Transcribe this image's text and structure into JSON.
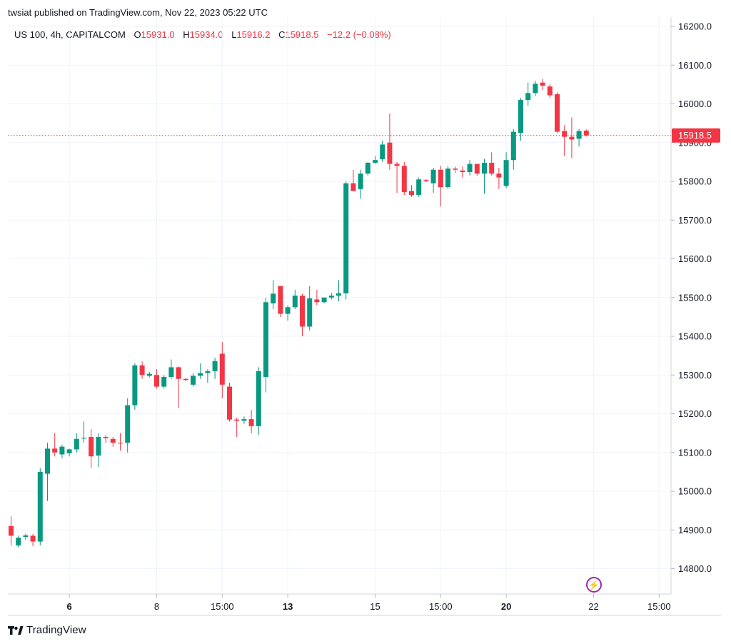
{
  "header": {
    "attribution": "twsiat published on TradingView.com, Nov 22, 2023 05:22 UTC"
  },
  "legend": {
    "symbol": "US 100, 4h, CAPITALCOM",
    "open_label": "O",
    "open": "15931.0",
    "high_label": "H",
    "high": "15934.0",
    "low_label": "L",
    "low": "15916.2",
    "close_label": "C",
    "close": "15918.5",
    "change": "−12.2 (−0.08%)"
  },
  "footer": {
    "brand": "TradingView"
  },
  "colors": {
    "up": "#089981",
    "down": "#f23645",
    "grid": "#f0f3fa",
    "text": "#131722",
    "accent": "#9c27b0"
  },
  "icons": {
    "brand": "tradingview-logo-icon",
    "lightning": "lightning-icon"
  },
  "chart_data": {
    "type": "candlestick",
    "timeframe": "4h",
    "ylim": [
      14730,
      16220
    ],
    "y_ticks": [
      "16200.0",
      "16100.0",
      "16000.0",
      "15900.0",
      "15800.0",
      "15700.0",
      "15600.0",
      "15500.0",
      "15400.0",
      "15300.0",
      "15200.0",
      "15100.0",
      "15000.0",
      "14900.0",
      "14800.0"
    ],
    "x_ticks": [
      {
        "label": "6",
        "index": 8,
        "bold": true
      },
      {
        "label": "8",
        "index": 20,
        "bold": false
      },
      {
        "label": "15:00",
        "index": 29,
        "bold": false
      },
      {
        "label": "13",
        "index": 38,
        "bold": true
      },
      {
        "label": "15",
        "index": 50,
        "bold": false
      },
      {
        "label": "15:00",
        "index": 59,
        "bold": false
      },
      {
        "label": "20",
        "index": 68,
        "bold": true
      },
      {
        "label": "22",
        "index": 80,
        "bold": false
      },
      {
        "label": "15:00",
        "index": 89,
        "bold": false
      }
    ],
    "last_price": "15918.5",
    "last_price_value": 15918.5,
    "candles": [
      {
        "o": 14910,
        "h": 14935,
        "l": 14860,
        "c": 14885
      },
      {
        "o": 14860,
        "h": 14885,
        "l": 14855,
        "c": 14880
      },
      {
        "o": 14882,
        "h": 14890,
        "l": 14875,
        "c": 14886
      },
      {
        "o": 14885,
        "h": 14890,
        "l": 14858,
        "c": 14870
      },
      {
        "o": 14870,
        "h": 15060,
        "l": 14860,
        "c": 15050
      },
      {
        "o": 15045,
        "h": 15125,
        "l": 14975,
        "c": 15110
      },
      {
        "o": 15110,
        "h": 15150,
        "l": 15090,
        "c": 15100
      },
      {
        "o": 15095,
        "h": 15120,
        "l": 15085,
        "c": 15115
      },
      {
        "o": 15098,
        "h": 15110,
        "l": 15090,
        "c": 15108
      },
      {
        "o": 15108,
        "h": 15150,
        "l": 15100,
        "c": 15135
      },
      {
        "o": 15136,
        "h": 15180,
        "l": 15125,
        "c": 15138
      },
      {
        "o": 15140,
        "h": 15160,
        "l": 15060,
        "c": 15090
      },
      {
        "o": 15092,
        "h": 15150,
        "l": 15062,
        "c": 15140
      },
      {
        "o": 15140,
        "h": 15145,
        "l": 15125,
        "c": 15137
      },
      {
        "o": 15135,
        "h": 15140,
        "l": 15115,
        "c": 15125
      },
      {
        "o": 15125,
        "h": 15150,
        "l": 15105,
        "c": 15124
      },
      {
        "o": 15125,
        "h": 15240,
        "l": 15100,
        "c": 15222
      },
      {
        "o": 15222,
        "h": 15330,
        "l": 15210,
        "c": 15325
      },
      {
        "o": 15325,
        "h": 15335,
        "l": 15290,
        "c": 15300
      },
      {
        "o": 15298,
        "h": 15308,
        "l": 15294,
        "c": 15303
      },
      {
        "o": 15300,
        "h": 15315,
        "l": 15265,
        "c": 15270
      },
      {
        "o": 15270,
        "h": 15300,
        "l": 15265,
        "c": 15295
      },
      {
        "o": 15295,
        "h": 15340,
        "l": 15290,
        "c": 15320
      },
      {
        "o": 15320,
        "h": 15322,
        "l": 15215,
        "c": 15290
      },
      {
        "o": 15290,
        "h": 15292,
        "l": 15283,
        "c": 15287
      },
      {
        "o": 15275,
        "h": 15305,
        "l": 15270,
        "c": 15298
      },
      {
        "o": 15298,
        "h": 15330,
        "l": 15290,
        "c": 15305
      },
      {
        "o": 15305,
        "h": 15315,
        "l": 15280,
        "c": 15310
      },
      {
        "o": 15310,
        "h": 15345,
        "l": 15290,
        "c": 15336
      },
      {
        "o": 15355,
        "h": 15385,
        "l": 15240,
        "c": 15275
      },
      {
        "o": 15270,
        "h": 15280,
        "l": 15180,
        "c": 15185
      },
      {
        "o": 15185,
        "h": 15190,
        "l": 15140,
        "c": 15182
      },
      {
        "o": 15182,
        "h": 15193,
        "l": 15174,
        "c": 15186
      },
      {
        "o": 15186,
        "h": 15210,
        "l": 15150,
        "c": 15168
      },
      {
        "o": 15168,
        "h": 15320,
        "l": 15145,
        "c": 15310
      },
      {
        "o": 15295,
        "h": 15500,
        "l": 15255,
        "c": 15488
      },
      {
        "o": 15485,
        "h": 15545,
        "l": 15470,
        "c": 15510
      },
      {
        "o": 15530,
        "h": 15530,
        "l": 15450,
        "c": 15458
      },
      {
        "o": 15458,
        "h": 15480,
        "l": 15440,
        "c": 15475
      },
      {
        "o": 15475,
        "h": 15520,
        "l": 15470,
        "c": 15505
      },
      {
        "o": 15505,
        "h": 15510,
        "l": 15400,
        "c": 15425
      },
      {
        "o": 15425,
        "h": 15530,
        "l": 15415,
        "c": 15498
      },
      {
        "o": 15495,
        "h": 15520,
        "l": 15480,
        "c": 15488
      },
      {
        "o": 15488,
        "h": 15500,
        "l": 15485,
        "c": 15500
      },
      {
        "o": 15500,
        "h": 15512,
        "l": 15495,
        "c": 15505
      },
      {
        "o": 15505,
        "h": 15545,
        "l": 15490,
        "c": 15511
      },
      {
        "o": 15511,
        "h": 15800,
        "l": 15495,
        "c": 15795
      },
      {
        "o": 15795,
        "h": 15830,
        "l": 15780,
        "c": 15775
      },
      {
        "o": 15780,
        "h": 15830,
        "l": 15755,
        "c": 15820
      },
      {
        "o": 15820,
        "h": 15850,
        "l": 15815,
        "c": 15848
      },
      {
        "o": 15848,
        "h": 15865,
        "l": 15845,
        "c": 15855
      },
      {
        "o": 15857,
        "h": 15905,
        "l": 15850,
        "c": 15895
      },
      {
        "o": 15900,
        "h": 15975,
        "l": 15830,
        "c": 15845
      },
      {
        "o": 15845,
        "h": 15850,
        "l": 15770,
        "c": 15840
      },
      {
        "o": 15840,
        "h": 15850,
        "l": 15765,
        "c": 15772
      },
      {
        "o": 15775,
        "h": 15790,
        "l": 15760,
        "c": 15765
      },
      {
        "o": 15765,
        "h": 15810,
        "l": 15760,
        "c": 15805
      },
      {
        "o": 15803,
        "h": 15806,
        "l": 15798,
        "c": 15800
      },
      {
        "o": 15795,
        "h": 15835,
        "l": 15770,
        "c": 15830
      },
      {
        "o": 15830,
        "h": 15840,
        "l": 15735,
        "c": 15785
      },
      {
        "o": 15785,
        "h": 15840,
        "l": 15780,
        "c": 15833
      },
      {
        "o": 15833,
        "h": 15838,
        "l": 15822,
        "c": 15830
      },
      {
        "o": 15828,
        "h": 15838,
        "l": 15810,
        "c": 15824
      },
      {
        "o": 15824,
        "h": 15855,
        "l": 15815,
        "c": 15845
      },
      {
        "o": 15845,
        "h": 15845,
        "l": 15815,
        "c": 15820
      },
      {
        "o": 15820,
        "h": 15858,
        "l": 15768,
        "c": 15848
      },
      {
        "o": 15848,
        "h": 15875,
        "l": 15815,
        "c": 15820
      },
      {
        "o": 15820,
        "h": 15835,
        "l": 15780,
        "c": 15810
      },
      {
        "o": 15788,
        "h": 15875,
        "l": 15782,
        "c": 15855
      },
      {
        "o": 15855,
        "h": 15935,
        "l": 15830,
        "c": 15928
      },
      {
        "o": 15925,
        "h": 16015,
        "l": 15905,
        "c": 16010
      },
      {
        "o": 16010,
        "h": 16055,
        "l": 15995,
        "c": 16028
      },
      {
        "o": 16028,
        "h": 16060,
        "l": 16020,
        "c": 16052
      },
      {
        "o": 16055,
        "h": 16065,
        "l": 16035,
        "c": 16047
      },
      {
        "o": 16045,
        "h": 16050,
        "l": 16015,
        "c": 16022
      },
      {
        "o": 16025,
        "h": 16030,
        "l": 15925,
        "c": 15928
      },
      {
        "o": 15930,
        "h": 15945,
        "l": 15865,
        "c": 15915
      },
      {
        "o": 15915,
        "h": 15965,
        "l": 15860,
        "c": 15908
      },
      {
        "o": 15910,
        "h": 15935,
        "l": 15890,
        "c": 15930
      },
      {
        "o": 15931,
        "h": 15934,
        "l": 15916.2,
        "c": 15918.5
      }
    ]
  }
}
